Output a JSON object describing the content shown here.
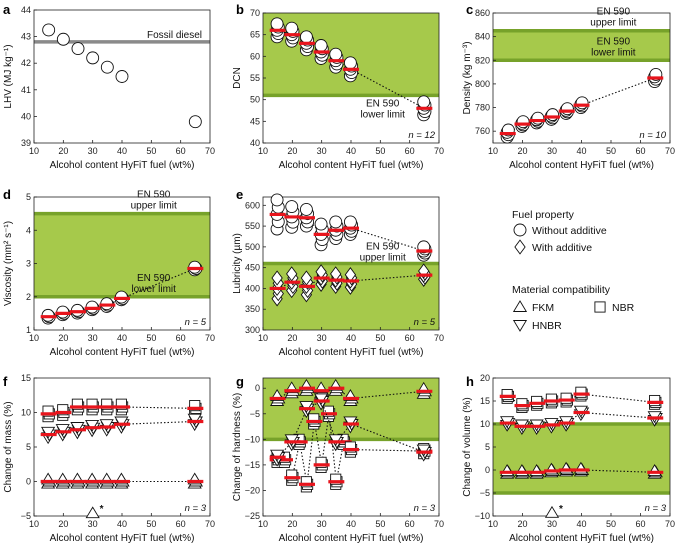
{
  "chart_data": [
    {
      "id": "a",
      "type": "scatter",
      "panel_label": "a",
      "xlabel": "Alcohol content HyFiT fuel (wt%)",
      "ylabel": "LHV (MJ kg⁻¹)",
      "xlim": [
        10,
        70
      ],
      "ylim": [
        39,
        44
      ],
      "xticks": [
        "10",
        "20",
        "30",
        "40",
        "50",
        "60",
        "70"
      ],
      "yticks": [
        "39",
        "40",
        "41",
        "42",
        "43",
        "44"
      ],
      "hlines": [
        {
          "value": 42.8,
          "label": "Fossil diesel",
          "color": "#8a8a8a"
        }
      ],
      "series": [
        {
          "name": "LHV",
          "marker": "circle",
          "x": [
            15,
            20,
            25,
            30,
            35,
            40,
            65
          ],
          "y": [
            43.25,
            42.9,
            42.55,
            42.2,
            41.85,
            41.5,
            39.8
          ]
        }
      ]
    },
    {
      "id": "b",
      "type": "scatter",
      "panel_label": "b",
      "xlabel": "Alcohol content HyFiT fuel (wt%)",
      "ylabel": "DCN",
      "xlim": [
        10,
        70
      ],
      "ylim": [
        40,
        70
      ],
      "xticks": [
        "10",
        "20",
        "30",
        "40",
        "50",
        "60",
        "70"
      ],
      "yticks": [
        "40",
        "45",
        "50",
        "55",
        "60",
        "65",
        "70"
      ],
      "shade": {
        "from": 51,
        "to": 70
      },
      "hlines": [
        {
          "value": 51,
          "label_lines": [
            "EN 590",
            "lower limit"
          ]
        }
      ],
      "n_label": "n = 12",
      "series": [
        {
          "name": "DCN",
          "marker": "circle",
          "x": [
            15,
            20,
            25,
            30,
            35,
            40,
            65
          ],
          "mean": [
            66,
            65,
            63,
            61,
            59,
            57,
            48
          ],
          "spread": [
            1.5,
            1.5,
            1.5,
            1.5,
            1.5,
            1.5,
            1.5
          ],
          "count": 5
        }
      ]
    },
    {
      "id": "c",
      "type": "scatter",
      "panel_label": "c",
      "xlabel": "Alcohol content HyFiT fuel (wt%)",
      "ylabel": "Density (kg m⁻³)",
      "xlim": [
        10,
        70
      ],
      "ylim": [
        750,
        860
      ],
      "xticks": [
        "10",
        "20",
        "30",
        "40",
        "50",
        "60",
        "70"
      ],
      "yticks": [
        "760",
        "780",
        "800",
        "820",
        "840",
        "860"
      ],
      "shade": {
        "from": 820,
        "to": 845
      },
      "hlines": [
        {
          "value": 845,
          "label_lines": [
            "EN 590",
            "upper limit"
          ]
        },
        {
          "value": 820,
          "label_lines": [
            "EN 590",
            "lower limit"
          ]
        }
      ],
      "n_label": "n = 10",
      "series": [
        {
          "name": "Density",
          "marker": "circle",
          "x": [
            15,
            20,
            25,
            30,
            35,
            40,
            65
          ],
          "mean": [
            758,
            766,
            769,
            772,
            777,
            782,
            805
          ],
          "spread": [
            3,
            2,
            2,
            2,
            2,
            2,
            3
          ],
          "count": 4
        }
      ]
    },
    {
      "id": "d",
      "type": "scatter",
      "panel_label": "d",
      "xlabel": "Alcohol content HyFiT fuel (wt%)",
      "ylabel": "Viscosity (mm² s⁻¹)",
      "xlim": [
        10,
        70
      ],
      "ylim": [
        1,
        5
      ],
      "xticks": [
        "10",
        "20",
        "30",
        "40",
        "50",
        "60",
        "70"
      ],
      "yticks": [
        "1",
        "2",
        "3",
        "4",
        "5"
      ],
      "shade": {
        "from": 2,
        "to": 4.5
      },
      "hlines": [
        {
          "value": 4.5,
          "label_lines": [
            "EN 590",
            "upper limit"
          ]
        },
        {
          "value": 2,
          "label_lines": [
            "EN 590",
            "lower limit"
          ]
        }
      ],
      "n_label": "n = 5",
      "series": [
        {
          "name": "Viscosity",
          "marker": "circle",
          "x": [
            15,
            20,
            25,
            30,
            35,
            40,
            65
          ],
          "mean": [
            1.4,
            1.5,
            1.55,
            1.65,
            1.75,
            1.95,
            2.85
          ],
          "spread": [
            0.04,
            0.04,
            0.04,
            0.04,
            0.04,
            0.04,
            0.04
          ],
          "count": 3
        }
      ]
    },
    {
      "id": "e",
      "type": "scatter",
      "panel_label": "e",
      "xlabel": "Alcohol content HyFiT fuel (wt%)",
      "ylabel": "Lubricity (µm)",
      "xlim": [
        10,
        70
      ],
      "ylim": [
        300,
        620
      ],
      "xticks": [
        "10",
        "20",
        "30",
        "40",
        "50",
        "60",
        "70"
      ],
      "yticks": [
        "300",
        "350",
        "400",
        "450",
        "500",
        "550",
        "600"
      ],
      "shade": {
        "from": 300,
        "to": 460
      },
      "hlines": [
        {
          "value": 460,
          "label_lines": [
            "EN 590",
            "upper limit"
          ]
        }
      ],
      "n_label": "n = 5",
      "series": [
        {
          "name": "Without additive",
          "marker": "circle",
          "x": [
            15,
            20,
            25,
            30,
            35,
            40,
            65
          ],
          "mean": [
            578,
            572,
            570,
            530,
            540,
            545,
            490
          ],
          "spread": [
            35,
            25,
            20,
            25,
            20,
            15,
            10
          ],
          "count": 5,
          "dotted_to_last": true
        },
        {
          "name": "With additive",
          "marker": "diamond",
          "x": [
            15,
            20,
            25,
            30,
            35,
            40,
            65
          ],
          "mean": [
            400,
            415,
            405,
            425,
            420,
            418,
            432
          ],
          "spread": [
            25,
            20,
            20,
            15,
            15,
            15,
            10
          ],
          "count": 5,
          "dotted_to_last": true
        }
      ]
    },
    {
      "id": "f",
      "type": "scatter",
      "panel_label": "f",
      "xlabel": "Alcohol content HyFiT fuel (wt%)",
      "ylabel": "Change of mass (%)",
      "xlim": [
        10,
        70
      ],
      "ylim": [
        -5,
        15
      ],
      "xticks": [
        "10",
        "20",
        "30",
        "40",
        "50",
        "60",
        "70"
      ],
      "yticks": [
        "−5",
        "0",
        "5",
        "10",
        "15"
      ],
      "n_label": "n = 3",
      "series": [
        {
          "name": "NBR",
          "marker": "square",
          "x": [
            15,
            20,
            25,
            30,
            35,
            40,
            65
          ],
          "mean": [
            9.8,
            10,
            10.8,
            10.8,
            10.8,
            10.8,
            10.6
          ],
          "spread": [
            0.4,
            0.4,
            0.4,
            0.4,
            0.4,
            0.4,
            0.4
          ],
          "count": 3,
          "dotted_to_last": true
        },
        {
          "name": "HNBR",
          "marker": "down-triangle",
          "x": [
            15,
            20,
            25,
            30,
            35,
            40,
            65
          ],
          "mean": [
            6.8,
            7.2,
            7.5,
            7.8,
            7.9,
            8.3,
            8.7
          ],
          "spread": [
            0.4,
            0.4,
            0.4,
            0.4,
            0.4,
            0.4,
            0.4
          ],
          "count": 3,
          "dotted_to_last": true
        },
        {
          "name": "FKM",
          "marker": "up-triangle",
          "x": [
            15,
            20,
            25,
            30,
            35,
            40,
            65
          ],
          "mean": [
            0,
            0,
            0,
            0,
            0,
            0,
            0
          ],
          "spread": [
            0.3,
            0.3,
            0.3,
            0.3,
            0.3,
            0.3,
            0.3
          ],
          "count": 3,
          "dotted_to_last": true
        }
      ],
      "annotation": {
        "x": 30,
        "y": -4.6,
        "marker": "up-triangle",
        "text": "*"
      }
    },
    {
      "id": "g",
      "type": "scatter",
      "panel_label": "g",
      "xlabel": "Alcohol content HyFiT fuel (wt%)",
      "ylabel": "Change of hardness (%)",
      "xlim": [
        10,
        70
      ],
      "ylim": [
        -25,
        2
      ],
      "xticks": [
        "10",
        "20",
        "30",
        "40",
        "50",
        "60",
        "70"
      ],
      "yticks": [
        "−25",
        "−20",
        "−15",
        "−10",
        "−5",
        "0"
      ],
      "shade": {
        "from": -10,
        "to": 2
      },
      "hlines": [
        {
          "value": -10
        }
      ],
      "n_label": "n = 3",
      "series": [
        {
          "name": "FKM",
          "marker": "up-triangle",
          "x": [
            15,
            20,
            25,
            30,
            35,
            40,
            65
          ],
          "mean": [
            -2,
            -0.5,
            0,
            -0.5,
            0,
            -2,
            -0.6
          ],
          "spread": [
            0.5,
            0.5,
            0.5,
            0.5,
            0.5,
            0.5,
            0.5
          ],
          "count": 3,
          "dotted_to_last": true
        },
        {
          "name": "NBR",
          "marker": "square",
          "x": [
            15,
            17.5,
            20,
            22.5,
            25,
            27.5,
            30,
            32.5,
            35,
            37.5,
            40,
            65
          ],
          "mean": [
            -14,
            -14,
            -17.5,
            -10.5,
            -18.8,
            -6.5,
            -15,
            -5,
            -18.3,
            -10.5,
            -12,
            -12.3
          ],
          "spread": [
            0.5,
            0.5,
            0.5,
            0.5,
            0.5,
            0.5,
            0.5,
            0.5,
            0.5,
            0.5,
            0.5,
            0.5
          ],
          "count": 3,
          "dotted_to_last": false
        },
        {
          "name": "HNBR",
          "marker": "down-triangle",
          "x": [
            15,
            20,
            25,
            30,
            35,
            40,
            65
          ],
          "mean": [
            -13.5,
            -10.5,
            -4,
            -2.5,
            -10.5,
            -7,
            -12.5
          ],
          "spread": [
            0.5,
            0.5,
            0.5,
            0.5,
            0.5,
            0.5,
            0.5
          ],
          "count": 3,
          "dotted_to_last": false
        }
      ]
    },
    {
      "id": "h",
      "type": "scatter",
      "panel_label": "h",
      "xlabel": "Alcohol content HyFiT fuel (wt%)",
      "ylabel": "Change of volume (%)",
      "xlim": [
        10,
        70
      ],
      "ylim": [
        -10,
        20
      ],
      "xticks": [
        "10",
        "20",
        "30",
        "40",
        "50",
        "60",
        "70"
      ],
      "yticks": [
        "−10",
        "−5",
        "0",
        "5",
        "10",
        "15",
        "20"
      ],
      "shade": {
        "from": -5,
        "to": 10
      },
      "hlines": [
        {
          "value": 10
        },
        {
          "value": -5
        }
      ],
      "n_label": "n = 3",
      "series": [
        {
          "name": "NBR",
          "marker": "square",
          "x": [
            15,
            20,
            25,
            30,
            35,
            40,
            65
          ],
          "mean": [
            16,
            14,
            14.5,
            15,
            15.2,
            16.5,
            14.7
          ],
          "spread": [
            0.4,
            0.4,
            0.4,
            0.4,
            0.4,
            0.4,
            0.4
          ],
          "count": 3,
          "dotted_to_last": true
        },
        {
          "name": "HNBR",
          "marker": "down-triangle",
          "x": [
            15,
            20,
            25,
            30,
            35,
            40,
            65
          ],
          "mean": [
            10.2,
            9.5,
            9.5,
            9.8,
            10.2,
            12.5,
            11.3
          ],
          "spread": [
            0.4,
            0.4,
            0.4,
            0.4,
            0.4,
            0.4,
            0.4
          ],
          "count": 3,
          "dotted_to_last": true
        },
        {
          "name": "FKM",
          "marker": "up-triangle",
          "x": [
            15,
            20,
            25,
            30,
            35,
            40,
            65
          ],
          "mean": [
            -0.5,
            -0.5,
            -0.5,
            -0.2,
            0,
            0,
            -0.5
          ],
          "spread": [
            0.3,
            0.3,
            0.3,
            0.3,
            0.3,
            0.3,
            0.3
          ],
          "count": 3,
          "dotted_to_last": true
        }
      ],
      "annotation": {
        "x": 30,
        "y": -9.3,
        "marker": "up-triangle",
        "text": "*"
      }
    }
  ],
  "legend": {
    "fuel_title": "Fuel property",
    "fuel_items": [
      {
        "marker": "circle",
        "label": "Without additive"
      },
      {
        "marker": "diamond",
        "label": "With additive"
      }
    ],
    "material_title": "Material compatibility",
    "material_items": [
      {
        "marker": "up-triangle",
        "label": "FKM"
      },
      {
        "marker": "square",
        "label": "NBR"
      },
      {
        "marker": "down-triangle",
        "label": "HNBR"
      }
    ]
  },
  "colors": {
    "green": "#a6c94b",
    "green_line": "#77a22a",
    "mean_red": "#e8141c",
    "grey_line": "#8a8a8a"
  }
}
